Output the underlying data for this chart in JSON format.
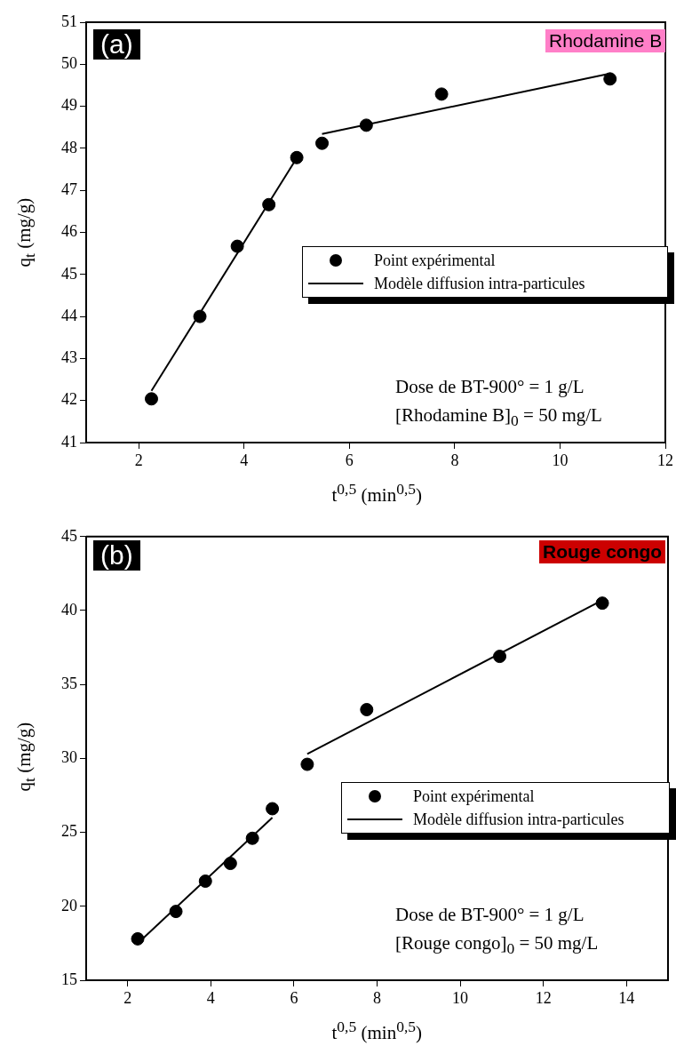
{
  "chart_data": [
    {
      "type": "scatter",
      "xlabel": "t$^{0,5}$ (min$^{0,5}$)",
      "ylabel": "q$_{t}$ (mg/g)",
      "xlim": [
        1,
        12
      ],
      "xticks": [
        2,
        4,
        6,
        8,
        10,
        12
      ],
      "ylim": [
        41,
        51
      ],
      "yticks": [
        41,
        42,
        43,
        44,
        45,
        46,
        47,
        48,
        49,
        50,
        51
      ],
      "grid": false,
      "legend": "right",
      "marker": "circle",
      "line_style": "solid",
      "annotations": [
        "(a)",
        "Rhodamine B",
        "Dose de BT-900° = 1 g/L",
        "[Rhodamine B]$_{0}$ = 50 mg/L"
      ],
      "series": [
        {
          "name": "Point expérimental",
          "color": "#000000",
          "x": [
            2.24,
            3.16,
            3.87,
            4.47,
            5.0,
            5.48,
            6.32,
            7.75,
            10.95
          ],
          "values": [
            42.04,
            44.0,
            45.67,
            46.66,
            47.78,
            48.12,
            48.55,
            49.29,
            49.65
          ]
        },
        {
          "name": "Modèle diffusion intra-particules",
          "type": "line",
          "marker": "none",
          "color": "#000000",
          "x": [
            2.24,
            5.0
          ],
          "values": [
            42.23,
            47.77
          ]
        },
        {
          "type": "line",
          "marker": "none",
          "color": "#000000",
          "x": [
            5.48,
            10.95
          ],
          "values": [
            48.34,
            49.78
          ]
        }
      ]
    },
    {
      "type": "scatter",
      "xlabel": "t$^{0,5}$ (min$^{0,5}$)",
      "ylabel": "q$_{t}$ (mg/g)",
      "xlim": [
        1,
        15
      ],
      "xticks": [
        2,
        4,
        6,
        8,
        10,
        12,
        14
      ],
      "ylim": [
        15,
        45
      ],
      "yticks": [
        15,
        20,
        25,
        30,
        35,
        40,
        45
      ],
      "grid": false,
      "legend": "right",
      "marker": "circle",
      "line_style": "solid",
      "annotations": [
        "(b)",
        "Rouge congo",
        "Dose de BT-900° = 1 g/L",
        "[Rouge congo]$_{0}$ = 50 mg/L"
      ],
      "series": [
        {
          "name": "Point expérimental",
          "color": "#000000",
          "x": [
            2.24,
            3.16,
            3.87,
            4.47,
            5.0,
            5.48,
            6.32,
            7.75,
            10.95,
            13.42
          ],
          "values": [
            17.8,
            19.65,
            21.7,
            22.9,
            24.6,
            26.6,
            29.6,
            33.3,
            36.9,
            40.5
          ]
        },
        {
          "name": "Modèle diffusion intra-particules",
          "type": "line",
          "marker": "none",
          "color": "#000000",
          "x": [
            2.24,
            5.48
          ],
          "values": [
            17.5,
            26.0
          ]
        },
        {
          "type": "line",
          "marker": "none",
          "color": "#000000",
          "x": [
            6.32,
            13.42
          ],
          "values": [
            30.3,
            40.7
          ]
        }
      ]
    }
  ]
}
